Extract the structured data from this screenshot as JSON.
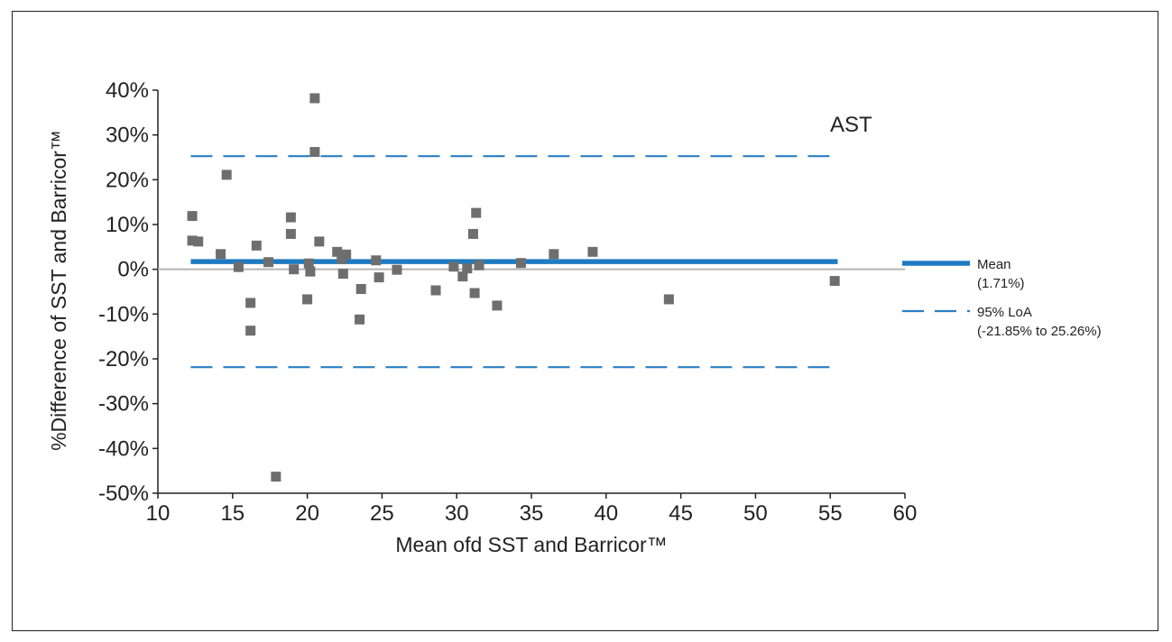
{
  "chart_data": {
    "type": "scatter",
    "panel_label": "AST",
    "xlabel": "Mean ofd SST and Barricor™",
    "ylabel": "%Difference of SST and Barricor™",
    "xlim": [
      10,
      60
    ],
    "ylim": [
      -50,
      40
    ],
    "x_ticks": [
      "10",
      "15",
      "20",
      "25",
      "30",
      "35",
      "40",
      "45",
      "50",
      "55",
      "60"
    ],
    "y_ticks": [
      "40%",
      "30%",
      "20%",
      "10%",
      "0%",
      "-10%",
      "-20%",
      "-30%",
      "-40%",
      "-50%"
    ],
    "mean_value": 1.71,
    "loa_lower": -21.85,
    "loa_upper": 25.26,
    "line_x_range": [
      12.2,
      55.5
    ],
    "zero_line": 0,
    "grid": false,
    "legend_position": "right",
    "legend": [
      {
        "label_line1": "Mean",
        "label_line2": "(1.71%)",
        "style": "solid"
      },
      {
        "label_line1": "95% LoA",
        "label_line2": "(-21.85% to 25.26%)",
        "style": "dashed"
      }
    ],
    "points": [
      {
        "x": 12.3,
        "y": 11.9
      },
      {
        "x": 12.3,
        "y": 6.4
      },
      {
        "x": 12.7,
        "y": 6.2
      },
      {
        "x": 14.2,
        "y": 3.4
      },
      {
        "x": 14.6,
        "y": 21.1
      },
      {
        "x": 15.4,
        "y": 0.5
      },
      {
        "x": 16.2,
        "y": -7.5
      },
      {
        "x": 16.2,
        "y": -13.7
      },
      {
        "x": 16.6,
        "y": 5.3
      },
      {
        "x": 17.4,
        "y": 1.6
      },
      {
        "x": 17.9,
        "y": -46.3
      },
      {
        "x": 18.9,
        "y": 11.6
      },
      {
        "x": 18.9,
        "y": 7.9
      },
      {
        "x": 19.1,
        "y": 0.0
      },
      {
        "x": 20.0,
        "y": -6.7
      },
      {
        "x": 20.1,
        "y": 1.3
      },
      {
        "x": 20.2,
        "y": -0.5
      },
      {
        "x": 20.5,
        "y": 26.2
      },
      {
        "x": 20.5,
        "y": 38.2
      },
      {
        "x": 20.8,
        "y": 6.2
      },
      {
        "x": 22.0,
        "y": 3.9
      },
      {
        "x": 22.3,
        "y": 2.3
      },
      {
        "x": 22.4,
        "y": -1.0
      },
      {
        "x": 22.6,
        "y": 3.3
      },
      {
        "x": 23.5,
        "y": -11.2
      },
      {
        "x": 23.6,
        "y": -4.4
      },
      {
        "x": 24.6,
        "y": 2.0
      },
      {
        "x": 24.8,
        "y": -1.8
      },
      {
        "x": 26.0,
        "y": -0.1
      },
      {
        "x": 28.6,
        "y": -4.7
      },
      {
        "x": 29.8,
        "y": 0.6
      },
      {
        "x": 30.4,
        "y": -1.6
      },
      {
        "x": 30.7,
        "y": 0.2
      },
      {
        "x": 31.1,
        "y": 7.9
      },
      {
        "x": 31.2,
        "y": -5.3
      },
      {
        "x": 31.3,
        "y": 12.6
      },
      {
        "x": 31.5,
        "y": 0.9
      },
      {
        "x": 32.7,
        "y": -8.1
      },
      {
        "x": 34.3,
        "y": 1.4
      },
      {
        "x": 36.5,
        "y": 3.4
      },
      {
        "x": 39.1,
        "y": 3.9
      },
      {
        "x": 44.2,
        "y": -6.7
      },
      {
        "x": 55.3,
        "y": -2.6
      }
    ]
  },
  "colors": {
    "mean_line": "#1f7bc1",
    "loa_line": "#2a7fc4",
    "points": "#6e6e6e",
    "zero_line": "#b3b3b3",
    "axis": "#222222"
  }
}
